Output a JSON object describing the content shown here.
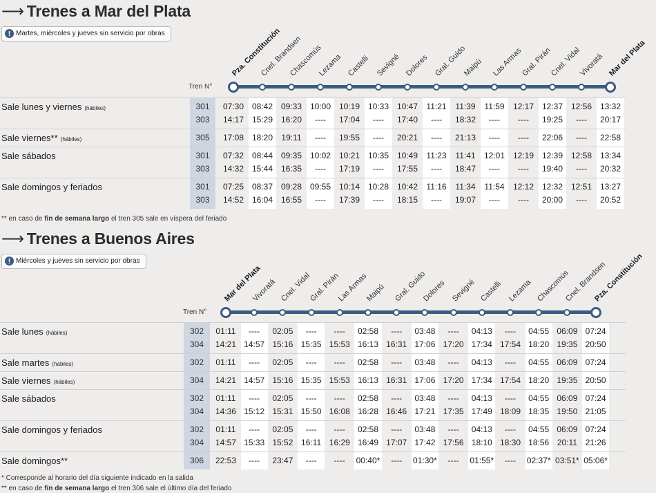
{
  "to_mdp": {
    "title": "Trenes a Mar del Plata",
    "notice": "Martes, miércoles y jueves sin servicio por obras",
    "tren_label": "Tren N°",
    "stations": [
      "Pza. Constitución",
      "Cnel. Brandsen",
      "Chascomús",
      "Lezama",
      "Castelli",
      "Sevigné",
      "Dolores",
      "Gral. Guido",
      "Maipú",
      "Las Armas",
      "Gral. Pirán",
      "Cnel. Vidal",
      "Vivoratá",
      "Mar del Plata"
    ],
    "groups": [
      {
        "label": "Sale lunes y viernes",
        "sub": "(hábiles)",
        "rows": [
          {
            "train": "301",
            "times": [
              "07:30",
              "08:42",
              "09:33",
              "10:00",
              "10:19",
              "10:33",
              "10:47",
              "11:21",
              "11:39",
              "11:59",
              "12:17",
              "12:37",
              "12:56",
              "13:32"
            ]
          },
          {
            "train": "303",
            "times": [
              "14:17",
              "15:29",
              "16:20",
              "----",
              "17:04",
              "----",
              "17:40",
              "----",
              "18:32",
              "----",
              "----",
              "19:25",
              "----",
              "20:17"
            ]
          }
        ]
      },
      {
        "label": "Sale viernes**",
        "sub": "(hábiles)",
        "rows": [
          {
            "train": "305",
            "times": [
              "17:08",
              "18:20",
              "19:11",
              "----",
              "19:55",
              "----",
              "20:21",
              "----",
              "21:13",
              "----",
              "----",
              "22:06",
              "----",
              "22:58"
            ]
          }
        ]
      },
      {
        "label": "Sale sábados",
        "sub": "",
        "rows": [
          {
            "train": "301",
            "times": [
              "07:32",
              "08:44",
              "09:35",
              "10:02",
              "10:21",
              "10:35",
              "10:49",
              "11:23",
              "11:41",
              "12:01",
              "12:19",
              "12:39",
              "12:58",
              "13:34"
            ]
          },
          {
            "train": "303",
            "times": [
              "14:32",
              "15:44",
              "16:35",
              "----",
              "17:19",
              "----",
              "17:55",
              "----",
              "18:47",
              "----",
              "----",
              "19:40",
              "----",
              "20:32"
            ]
          }
        ]
      },
      {
        "label": "Sale domingos y feriados",
        "sub": "",
        "rows": [
          {
            "train": "301",
            "times": [
              "07:25",
              "08:37",
              "09:28",
              "09:55",
              "10:14",
              "10:28",
              "10:42",
              "11:16",
              "11:34",
              "11:54",
              "12:12",
              "12:32",
              "12:51",
              "13:27"
            ]
          },
          {
            "train": "303",
            "times": [
              "14:52",
              "16:04",
              "16:55",
              "----",
              "17:39",
              "----",
              "18:15",
              "----",
              "19:07",
              "----",
              "----",
              "20:00",
              "----",
              "20:52"
            ]
          }
        ]
      }
    ],
    "footnote": {
      "pre": "** en caso de ",
      "bold": "fin de semana largo",
      "post": " el tren 305 sale en víspera del feriado"
    }
  },
  "to_ba": {
    "title": "Trenes a Buenos Aires",
    "notice": "Miércoles y jueves sin servicio por obras",
    "tren_label": "Tren N°",
    "stations": [
      "Mar del Plata",
      "Vivoratá",
      "Cnel. Vidal",
      "Gral. Pirán",
      "Las Armas",
      "Maipú",
      "Gral. Guido",
      "Dolores",
      "Sevigné",
      "Castelli",
      "Lezama",
      "Chascomús",
      "Cnel. Brandsen",
      "Pza. Constitución"
    ],
    "groups": [
      {
        "label": "Sale lunes",
        "sub": "(hábiles)",
        "rows": [
          {
            "train": "302",
            "times": [
              "01:11",
              "----",
              "02:05",
              "----",
              "----",
              "02:58",
              "----",
              "03:48",
              "----",
              "04:13",
              "----",
              "04:55",
              "06:09",
              "07:24"
            ]
          },
          {
            "train": "304",
            "times": [
              "14:21",
              "14:57",
              "15:16",
              "15:35",
              "15:53",
              "16:13",
              "16:31",
              "17:06",
              "17:20",
              "17:34",
              "17:54",
              "18:20",
              "19:35",
              "20:50"
            ]
          }
        ]
      },
      {
        "label": "Sale martes",
        "sub": "(hábiles)",
        "rows": [
          {
            "train": "302",
            "times": [
              "01:11",
              "----",
              "02:05",
              "----",
              "----",
              "02:58",
              "----",
              "03:48",
              "----",
              "04:13",
              "----",
              "04:55",
              "06:09",
              "07:24"
            ]
          }
        ]
      },
      {
        "label": "Sale viernes",
        "sub": "(hábiles)",
        "rows": [
          {
            "train": "304",
            "times": [
              "14:21",
              "14:57",
              "15:16",
              "15:35",
              "15:53",
              "16:13",
              "16:31",
              "17:06",
              "17:20",
              "17:34",
              "17:54",
              "18:20",
              "19:35",
              "20:50"
            ]
          }
        ]
      },
      {
        "label": "Sale sábados",
        "sub": "",
        "rows": [
          {
            "train": "302",
            "times": [
              "01:11",
              "----",
              "02:05",
              "----",
              "----",
              "02:58",
              "----",
              "03:48",
              "----",
              "04:13",
              "----",
              "04:55",
              "06:09",
              "07:24"
            ]
          },
          {
            "train": "304",
            "times": [
              "14:36",
              "15:12",
              "15:31",
              "15:50",
              "16:08",
              "16:28",
              "16:46",
              "17:21",
              "17:35",
              "17:49",
              "18:09",
              "18:35",
              "19:50",
              "21:05"
            ]
          }
        ]
      },
      {
        "label": "Sale domingos y feriados",
        "sub": "",
        "rows": [
          {
            "train": "302",
            "times": [
              "01:11",
              "----",
              "02:05",
              "----",
              "----",
              "02:58",
              "----",
              "03:48",
              "----",
              "04:13",
              "----",
              "04:55",
              "06:09",
              "07:24"
            ]
          },
          {
            "train": "304",
            "times": [
              "14:57",
              "15:33",
              "15:52",
              "16:11",
              "16:29",
              "16:49",
              "17:07",
              "17:42",
              "17:56",
              "18:10",
              "18:30",
              "18:56",
              "20:11",
              "21:26"
            ]
          }
        ]
      },
      {
        "label": "Sale domingos**",
        "sub": "",
        "rows": [
          {
            "train": "306",
            "times": [
              "22:53",
              "----",
              "23:47",
              "----",
              "----",
              "00:40*",
              "----",
              "01:30*",
              "----",
              "01:55*",
              "----",
              "02:37*",
              "03:51*",
              "05:06*"
            ]
          }
        ]
      }
    ],
    "footnote1": "* Corresponde al horario del día siguiente indicado en la salida",
    "footnote2": {
      "pre": "** en caso de ",
      "bold": "fin de semana largo",
      "post": " el tren 306 sale el último día del feriado"
    }
  },
  "colors": {
    "route": "#3d5a7f",
    "train_col": "#cdd6e1",
    "warning": "#3d5a7f"
  }
}
